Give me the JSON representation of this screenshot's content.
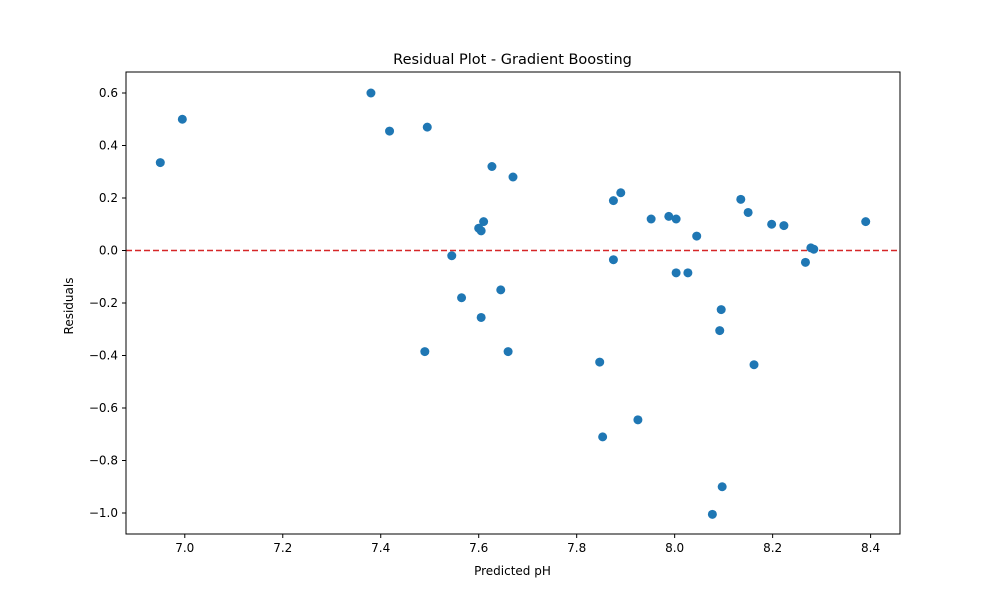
{
  "chart_data": {
    "type": "scatter",
    "title": "Residual Plot - Gradient Boosting",
    "xlabel": "Predicted pH",
    "ylabel": "Residuals",
    "xlim": [
      6.88,
      8.46
    ],
    "ylim": [
      -1.08,
      0.68
    ],
    "xticks": [
      7.0,
      7.2,
      7.4,
      7.6,
      7.8,
      8.0,
      8.2,
      8.4
    ],
    "xtick_labels": [
      "7.0",
      "7.2",
      "7.4",
      "7.6",
      "7.8",
      "8.0",
      "8.2",
      "8.4"
    ],
    "yticks": [
      -1.0,
      -0.8,
      -0.6,
      -0.4,
      -0.2,
      0.0,
      0.2,
      0.4,
      0.6
    ],
    "ytick_labels": [
      "−1.0",
      "−0.8",
      "−0.6",
      "−0.4",
      "−0.2",
      "0.0",
      "0.2",
      "0.4",
      "0.6"
    ],
    "grid": false,
    "point_color": "#1f77b4",
    "reference_line": {
      "y": 0.0,
      "color": "#d62728",
      "style": "dashed"
    },
    "points": [
      {
        "x": 6.95,
        "y": 0.335
      },
      {
        "x": 6.995,
        "y": 0.5
      },
      {
        "x": 7.38,
        "y": 0.6
      },
      {
        "x": 7.418,
        "y": 0.455
      },
      {
        "x": 7.495,
        "y": 0.47
      },
      {
        "x": 7.49,
        "y": -0.385
      },
      {
        "x": 7.545,
        "y": -0.02
      },
      {
        "x": 7.565,
        "y": -0.18
      },
      {
        "x": 7.6,
        "y": 0.085
      },
      {
        "x": 7.605,
        "y": 0.075
      },
      {
        "x": 7.61,
        "y": 0.11
      },
      {
        "x": 7.605,
        "y": -0.255
      },
      {
        "x": 7.627,
        "y": 0.32
      },
      {
        "x": 7.645,
        "y": -0.15
      },
      {
        "x": 7.67,
        "y": 0.28
      },
      {
        "x": 7.66,
        "y": -0.385
      },
      {
        "x": 7.847,
        "y": -0.425
      },
      {
        "x": 7.853,
        "y": -0.71
      },
      {
        "x": 7.875,
        "y": 0.19
      },
      {
        "x": 7.875,
        "y": -0.035
      },
      {
        "x": 7.89,
        "y": 0.22
      },
      {
        "x": 7.925,
        "y": -0.645
      },
      {
        "x": 7.952,
        "y": 0.12
      },
      {
        "x": 7.988,
        "y": 0.13
      },
      {
        "x": 8.003,
        "y": 0.12
      },
      {
        "x": 8.003,
        "y": -0.085
      },
      {
        "x": 8.027,
        "y": -0.085
      },
      {
        "x": 8.045,
        "y": 0.055
      },
      {
        "x": 8.077,
        "y": -1.005
      },
      {
        "x": 8.092,
        "y": -0.305
      },
      {
        "x": 8.095,
        "y": -0.225
      },
      {
        "x": 8.097,
        "y": -0.9
      },
      {
        "x": 8.135,
        "y": 0.195
      },
      {
        "x": 8.15,
        "y": 0.145
      },
      {
        "x": 8.162,
        "y": -0.435
      },
      {
        "x": 8.198,
        "y": 0.1
      },
      {
        "x": 8.223,
        "y": 0.095
      },
      {
        "x": 8.267,
        "y": -0.045
      },
      {
        "x": 8.278,
        "y": 0.01
      },
      {
        "x": 8.284,
        "y": 0.005
      },
      {
        "x": 8.39,
        "y": 0.11
      }
    ]
  }
}
